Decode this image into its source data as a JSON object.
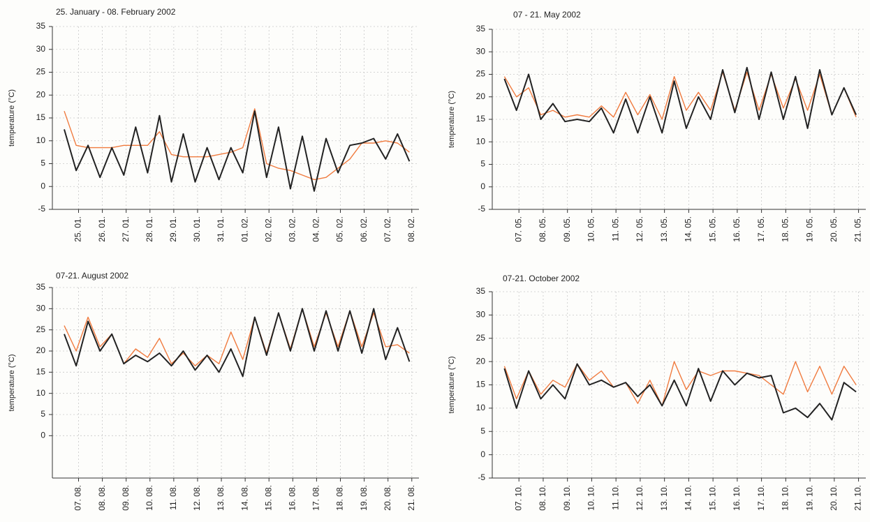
{
  "chart_data": [
    {
      "type": "line",
      "title": "25. January - 08. February 2002",
      "y_label": "temperature (°C)",
      "grid": true,
      "xlim": [
        -1.1,
        14.3
      ],
      "ylim": [
        -5,
        35
      ],
      "yticks": [
        -5,
        0,
        5,
        10,
        15,
        20,
        25,
        30,
        35
      ],
      "xticks": [
        {
          "value": 0,
          "label": "25. 01."
        },
        {
          "value": 1,
          "label": "26. 01."
        },
        {
          "value": 2,
          "label": "27. 01."
        },
        {
          "value": 3,
          "label": "28. 01."
        },
        {
          "value": 4,
          "label": "29. 01."
        },
        {
          "value": 5,
          "label": "30. 01."
        },
        {
          "value": 6,
          "label": "31. 01."
        },
        {
          "value": 7,
          "label": "01. 02."
        },
        {
          "value": 8,
          "label": "02. 02."
        },
        {
          "value": 9,
          "label": "03. 02."
        },
        {
          "value": 10,
          "label": "04. 02."
        },
        {
          "value": 11,
          "label": "05. 02."
        },
        {
          "value": 12,
          "label": "06. 02."
        },
        {
          "value": 13,
          "label": "07. 02."
        },
        {
          "value": 14,
          "label": "08. 02."
        }
      ],
      "x": [
        -0.6,
        -0.1,
        0.4,
        0.9,
        1.4,
        1.9,
        2.4,
        2.9,
        3.4,
        3.9,
        4.4,
        4.9,
        5.4,
        5.9,
        6.4,
        6.9,
        7.4,
        7.9,
        8.4,
        8.9,
        9.4,
        9.9,
        10.4,
        10.9,
        11.4,
        11.9,
        12.4,
        12.9,
        13.4,
        13.9
      ],
      "series": [
        {
          "color": "#f07b3f",
          "values": [
            16.5,
            9,
            8.5,
            8.5,
            8.5,
            9,
            9,
            9,
            12,
            7,
            6.5,
            6.5,
            6.5,
            7,
            7.5,
            8.5,
            17,
            5,
            4,
            3.5,
            2.5,
            1.5,
            2,
            4,
            6,
            9.5,
            9.5,
            10,
            9.5,
            7.5
          ]
        },
        {
          "color": "#222222",
          "values": [
            12.5,
            3.5,
            9,
            2,
            8.5,
            2.5,
            13,
            3,
            15.5,
            1,
            11.5,
            1,
            8.5,
            1.5,
            8.5,
            3,
            16.5,
            2,
            13,
            -0.5,
            11,
            -1,
            10.5,
            3,
            9,
            9.5,
            10.5,
            6,
            11.5,
            5.5
          ]
        }
      ]
    },
    {
      "type": "line",
      "title": "07 - 21. May 2002",
      "y_label": "temperature (°C)",
      "grid": true,
      "xlim": [
        -1.1,
        14.3
      ],
      "ylim": [
        -5,
        35
      ],
      "yticks": [
        -5,
        0,
        5,
        10,
        15,
        20,
        25,
        30,
        35
      ],
      "xticks": [
        {
          "value": 0,
          "label": "07. 05."
        },
        {
          "value": 1,
          "label": "08. 05."
        },
        {
          "value": 2,
          "label": "09. 05."
        },
        {
          "value": 3,
          "label": "10. 05."
        },
        {
          "value": 4,
          "label": "11. 05."
        },
        {
          "value": 5,
          "label": "12. 05."
        },
        {
          "value": 6,
          "label": "13. 05."
        },
        {
          "value": 7,
          "label": "14. 05."
        },
        {
          "value": 8,
          "label": "15. 05."
        },
        {
          "value": 9,
          "label": "16. 05."
        },
        {
          "value": 10,
          "label": "17. 05."
        },
        {
          "value": 11,
          "label": "18. 05."
        },
        {
          "value": 12,
          "label": "19. 05."
        },
        {
          "value": 13,
          "label": "20. 05."
        },
        {
          "value": 14,
          "label": "21. 05."
        }
      ],
      "x": [
        -0.6,
        -0.1,
        0.4,
        0.9,
        1.4,
        1.9,
        2.4,
        2.9,
        3.4,
        3.9,
        4.4,
        4.9,
        5.4,
        5.9,
        6.4,
        6.9,
        7.4,
        7.9,
        8.4,
        8.9,
        9.4,
        9.9,
        10.4,
        10.9,
        11.4,
        11.9,
        12.4,
        12.9,
        13.4,
        13.9
      ],
      "series": [
        {
          "color": "#f07b3f",
          "values": [
            24.5,
            20,
            22,
            16,
            17,
            15.5,
            16,
            15.5,
            18,
            15.5,
            21,
            16,
            20.5,
            15,
            24.5,
            17,
            21,
            17,
            25.5,
            17,
            25.5,
            17,
            25,
            17.5,
            24,
            17,
            25,
            16,
            22,
            15.5
          ]
        },
        {
          "color": "#222222",
          "values": [
            24,
            17,
            25,
            15,
            18.5,
            14.5,
            15,
            14.5,
            17.5,
            12,
            19.5,
            12,
            20,
            12,
            23.5,
            13,
            20,
            15,
            26,
            16.5,
            26.5,
            15,
            25.5,
            15,
            24.5,
            13,
            26,
            16,
            22,
            16
          ]
        }
      ]
    },
    {
      "type": "line",
      "title": "07-21. August 2002",
      "y_label": "temperature (°C)",
      "grid": true,
      "xlim": [
        -1.1,
        14.3
      ],
      "ylim": [
        -10,
        35
      ],
      "yticks": [
        0,
        5,
        10,
        15,
        20,
        25,
        30,
        35
      ],
      "xticks": [
        {
          "value": 0,
          "label": "07. 08."
        },
        {
          "value": 1,
          "label": "08. 08."
        },
        {
          "value": 2,
          "label": "09. 08."
        },
        {
          "value": 3,
          "label": "10. 08."
        },
        {
          "value": 4,
          "label": "11. 08."
        },
        {
          "value": 5,
          "label": "12. 08."
        },
        {
          "value": 6,
          "label": "13. 08."
        },
        {
          "value": 7,
          "label": "14. 08."
        },
        {
          "value": 8,
          "label": "15. 08."
        },
        {
          "value": 9,
          "label": "16. 08."
        },
        {
          "value": 10,
          "label": "17. 08."
        },
        {
          "value": 11,
          "label": "18. 08."
        },
        {
          "value": 12,
          "label": "19. 08."
        },
        {
          "value": 13,
          "label": "20. 08."
        },
        {
          "value": 14,
          "label": "21. 08."
        }
      ],
      "x": [
        -0.6,
        -0.1,
        0.4,
        0.9,
        1.4,
        1.9,
        2.4,
        2.9,
        3.4,
        3.9,
        4.4,
        4.9,
        5.4,
        5.9,
        6.4,
        6.9,
        7.4,
        7.9,
        8.4,
        8.9,
        9.4,
        9.9,
        10.4,
        10.9,
        11.4,
        11.9,
        12.4,
        12.9,
        13.4,
        13.9
      ],
      "series": [
        {
          "color": "#f07b3f",
          "values": [
            26,
            20,
            28,
            21,
            24,
            17,
            20.5,
            18.5,
            23,
            17,
            19.5,
            16.5,
            19,
            17,
            24.5,
            18,
            28,
            19.5,
            29,
            20.5,
            30,
            21,
            29,
            21,
            29.5,
            21,
            29,
            21,
            21.5,
            19.5
          ]
        },
        {
          "color": "#222222",
          "values": [
            24,
            16.5,
            27,
            20,
            24,
            17,
            19,
            17.5,
            19.5,
            16.5,
            20,
            15.5,
            19,
            15,
            20.5,
            14,
            28,
            19,
            29,
            20,
            30,
            20,
            29.5,
            20,
            29.5,
            19.5,
            30,
            18,
            25.5,
            17.5
          ]
        }
      ]
    },
    {
      "type": "line",
      "title": "07-21. October 2002",
      "y_label": "temperature (°C)",
      "grid": true,
      "xlim": [
        -1.1,
        14.3
      ],
      "ylim": [
        -5,
        35
      ],
      "yticks": [
        -5,
        0,
        5,
        10,
        15,
        20,
        25,
        30,
        35
      ],
      "xticks": [
        {
          "value": 0,
          "label": "07. 10."
        },
        {
          "value": 1,
          "label": "08. 10."
        },
        {
          "value": 2,
          "label": "09. 10."
        },
        {
          "value": 3,
          "label": "10. 10."
        },
        {
          "value": 4,
          "label": "11. 10."
        },
        {
          "value": 5,
          "label": "12. 10."
        },
        {
          "value": 6,
          "label": "13. 10."
        },
        {
          "value": 7,
          "label": "14. 10."
        },
        {
          "value": 8,
          "label": "15. 10."
        },
        {
          "value": 9,
          "label": "16. 10."
        },
        {
          "value": 10,
          "label": "17. 10."
        },
        {
          "value": 11,
          "label": "18. 10."
        },
        {
          "value": 12,
          "label": "19. 10."
        },
        {
          "value": 13,
          "label": "20. 10."
        },
        {
          "value": 14,
          "label": "21. 10."
        }
      ],
      "x": [
        -0.6,
        -0.1,
        0.4,
        0.9,
        1.4,
        1.9,
        2.4,
        2.9,
        3.4,
        3.9,
        4.4,
        4.9,
        5.4,
        5.9,
        6.4,
        6.9,
        7.4,
        7.9,
        8.4,
        8.9,
        9.4,
        9.9,
        10.4,
        10.9,
        11.4,
        11.9,
        12.4,
        12.9,
        13.4,
        13.9
      ],
      "series": [
        {
          "color": "#f07b3f",
          "values": [
            19,
            12,
            18,
            13,
            16,
            14.5,
            19.5,
            16,
            18,
            14.5,
            15.5,
            11,
            16,
            10.5,
            20,
            14,
            18,
            17,
            18,
            18,
            17.5,
            17,
            15,
            13,
            20,
            13.5,
            19,
            13,
            19,
            15
          ]
        },
        {
          "color": "#222222",
          "values": [
            18.5,
            10,
            18,
            12,
            15,
            12,
            19.5,
            15,
            16,
            14.5,
            15.5,
            12.5,
            15,
            10.5,
            16,
            10.5,
            18.5,
            11.5,
            18,
            15,
            17.5,
            16.5,
            17,
            9,
            10,
            8,
            11,
            7.5,
            15.5,
            13.5
          ]
        }
      ]
    }
  ]
}
